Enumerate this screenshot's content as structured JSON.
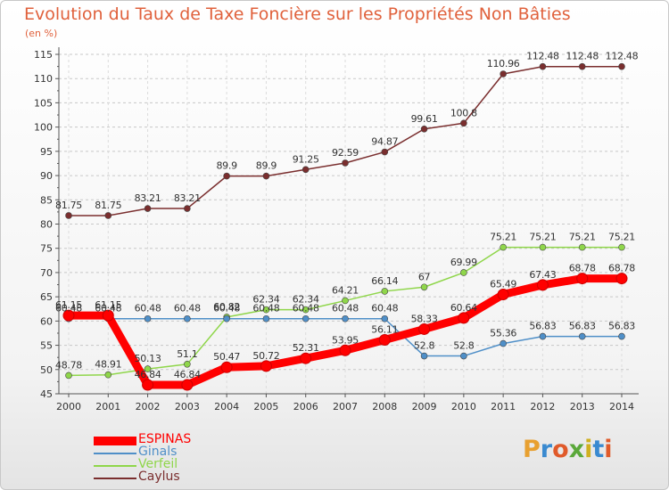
{
  "title": "Evolution du Taux de Taxe Foncière sur les Propriétés Non Bâties",
  "unit_label": "(en %)",
  "logo_text": "Proxiti",
  "chart_data": {
    "type": "line",
    "title": "Evolution du Taux de Taxe Foncière sur les Propriétés Non Bâties",
    "ylabel": "(en %)",
    "x": [
      2000,
      2001,
      2002,
      2003,
      2004,
      2005,
      2006,
      2007,
      2008,
      2009,
      2010,
      2011,
      2012,
      2013,
      2014
    ],
    "ylim": [
      45,
      115
    ],
    "yticks": [
      45,
      50,
      55,
      60,
      65,
      70,
      75,
      80,
      85,
      90,
      95,
      100,
      105,
      110,
      115
    ],
    "grid": "horizontal dashed",
    "legend_position": "bottom-left",
    "series": [
      {
        "name": "ESPINAS",
        "color": "#ff0000",
        "values": [
          61.15,
          61.15,
          46.84,
          46.84,
          50.47,
          50.72,
          52.31,
          53.95,
          56.11,
          58.33,
          60.64,
          65.49,
          67.43,
          68.78,
          68.78
        ],
        "labels": [
          "61.15",
          "61.15",
          "46.84",
          "46.84",
          "50.47",
          "50.72",
          "52.31",
          "53.95",
          "56.11",
          "58.33",
          "60.64",
          "65.49",
          "67.43",
          "68.78",
          "68.78"
        ]
      },
      {
        "name": "Ginals",
        "color": "#4f8fc8",
        "values": [
          60.48,
          60.48,
          60.48,
          60.48,
          60.48,
          60.48,
          60.48,
          60.48,
          60.48,
          52.8,
          52.8,
          55.36,
          56.83,
          56.83,
          56.83
        ],
        "labels": [
          "60.48",
          "60.48",
          "60.48",
          "60.48",
          "60.48",
          "60.48",
          "60.48",
          "60.48",
          "60.48",
          "52.8",
          "52.8",
          "55.36",
          "56.83",
          "56.83",
          "56.83"
        ]
      },
      {
        "name": "Verfeil",
        "color": "#8fd64a",
        "values": [
          48.78,
          48.91,
          50.13,
          51.1,
          60.82,
          62.34,
          62.34,
          64.21,
          66.14,
          67,
          69.99,
          75.21,
          75.21,
          75.21,
          75.21
        ],
        "labels": [
          "48.78",
          "48.91",
          "50.13",
          "51.1",
          "60.82",
          "62.34",
          "62.34",
          "64.21",
          "66.14",
          "67",
          "69.99",
          "75.21",
          "75.21",
          "75.21",
          "75.21"
        ]
      },
      {
        "name": "Caylus",
        "color": "#7a2e2e",
        "values": [
          81.75,
          81.75,
          83.21,
          83.21,
          89.9,
          89.9,
          91.25,
          92.59,
          94.87,
          99.61,
          100.8,
          110.96,
          112.48,
          112.48,
          112.48
        ],
        "labels": [
          "81.75",
          "81.75",
          "83.21",
          "83.21",
          "89.9",
          "89.9",
          "91.25",
          "92.59",
          "94.87",
          "99.61",
          "100.8",
          "110.96",
          "112.48",
          "112.48",
          "112.48"
        ]
      }
    ]
  }
}
